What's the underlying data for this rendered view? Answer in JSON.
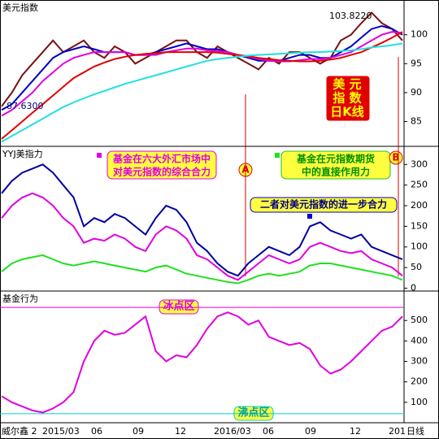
{
  "chart_data": [
    {
      "type": "line",
      "title": "美元指数",
      "ylim": [
        81,
        106
      ],
      "yticks": [
        85,
        90,
        95,
        100
      ],
      "annotations": [
        "103.8220",
        "87.6300",
        "美 元",
        "指 数",
        "日K线"
      ],
      "series": [
        {
          "color": "#7a1010",
          "values": [
            87.63,
            90,
            93,
            95,
            97,
            99,
            97,
            98,
            99,
            97,
            96,
            98,
            97,
            95,
            96,
            97,
            98,
            99,
            99,
            97,
            96,
            98,
            97,
            96,
            95,
            94,
            96,
            95,
            97,
            97,
            96,
            95,
            96,
            99,
            100,
            102,
            103.822,
            102,
            101,
            99
          ]
        },
        {
          "color": "#0000c0",
          "values": [
            87,
            88,
            90,
            92,
            94,
            96,
            97,
            97.5,
            98,
            97.5,
            97,
            97,
            97,
            96.5,
            96.5,
            97,
            97.5,
            98,
            98.5,
            98,
            97.5,
            97.5,
            97,
            96.5,
            96,
            95.5,
            95.5,
            95.5,
            96,
            96.5,
            96.5,
            96,
            96,
            97,
            98,
            99.5,
            101,
            101.5,
            101,
            100
          ]
        },
        {
          "color": "#e000e0",
          "values": [
            86,
            87,
            88.5,
            90,
            92,
            93.5,
            95,
            96,
            96.5,
            97,
            97,
            97,
            97,
            96.5,
            96.5,
            96.5,
            97,
            97.3,
            97.6,
            97.6,
            97.3,
            97.2,
            97,
            96.5,
            96.2,
            95.8,
            95.5,
            95.4,
            95.4,
            95.6,
            95.8,
            95.8,
            96,
            96.5,
            97,
            98,
            99,
            100,
            100.5,
            100.3
          ]
        },
        {
          "color": "#e00000",
          "values": [
            82,
            83.5,
            85,
            86.5,
            88,
            89.5,
            91,
            92.5,
            93.5,
            94.5,
            95.2,
            95.8,
            96.2,
            96.5,
            96.7,
            96.8,
            97,
            97,
            97,
            97,
            97,
            96.9,
            96.7,
            96.5,
            96.3,
            96,
            95.8,
            95.6,
            95.5,
            95.4,
            95.4,
            95.5,
            95.7,
            96,
            96.5,
            97,
            97.8,
            98.6,
            99.5,
            100.5
          ]
        },
        {
          "color": "#20e0e0",
          "values": [
            81.5,
            82.5,
            83.5,
            84.5,
            85.5,
            86.5,
            87.5,
            88.3,
            89,
            89.7,
            90.3,
            90.9,
            91.5,
            92,
            92.5,
            93,
            93.5,
            94,
            94.5,
            95,
            95.5,
            95.8,
            96,
            96.2,
            96.4,
            96.5,
            96.6,
            96.7,
            96.8,
            96.9,
            97,
            97,
            97.1,
            97.2,
            97.3,
            97.5,
            97.8,
            98,
            98.2,
            98.5
          ]
        }
      ]
    },
    {
      "type": "line",
      "title": "YYJ美指力",
      "ylim": [
        -5,
        344
      ],
      "yticks": [
        0,
        50,
        100,
        150,
        200,
        250,
        300
      ],
      "annotations": [
        "基金在六大外汇市场中",
        "对美元指数的综合合力",
        "基金在元指数期货",
        "中的直接作用力",
        "二者对美元指数的进一步合力",
        "A",
        "B"
      ],
      "series": [
        {
          "color": "#0000a0",
          "values": [
            230,
            260,
            280,
            290,
            300,
            280,
            250,
            220,
            150,
            170,
            160,
            180,
            170,
            150,
            130,
            170,
            200,
            190,
            160,
            110,
            90,
            60,
            40,
            30,
            60,
            80,
            100,
            90,
            80,
            100,
            150,
            160,
            140,
            130,
            120,
            130,
            100,
            90,
            80,
            70
          ]
        },
        {
          "color": "#e000e0",
          "values": [
            170,
            200,
            220,
            230,
            220,
            200,
            170,
            150,
            110,
            120,
            115,
            130,
            120,
            100,
            90,
            130,
            150,
            140,
            120,
            80,
            70,
            50,
            30,
            20,
            40,
            60,
            80,
            70,
            60,
            70,
            100,
            110,
            100,
            90,
            85,
            90,
            70,
            60,
            50,
            30
          ]
        },
        {
          "color": "#20e020",
          "values": [
            40,
            60,
            70,
            75,
            80,
            70,
            60,
            55,
            60,
            65,
            60,
            55,
            50,
            45,
            40,
            50,
            55,
            45,
            35,
            30,
            25,
            20,
            15,
            12,
            20,
            30,
            35,
            30,
            35,
            40,
            55,
            60,
            60,
            55,
            50,
            45,
            40,
            35,
            30,
            20
          ]
        }
      ]
    },
    {
      "type": "line",
      "title": "基金行为",
      "ylim": [
        0,
        644
      ],
      "yticks": [
        100,
        200,
        300,
        400,
        500
      ],
      "annotations": [
        "冰点区",
        "沸点区"
      ],
      "hlines": [
        {
          "value": 564,
          "color": "#e000e0"
        },
        {
          "value": 44,
          "color": "#00d0d0"
        }
      ],
      "series": [
        {
          "color": "#e000e0",
          "values": [
            130,
            100,
            80,
            60,
            50,
            70,
            100,
            150,
            300,
            400,
            450,
            430,
            440,
            480,
            520,
            350,
            300,
            330,
            320,
            380,
            460,
            520,
            540,
            520,
            480,
            500,
            420,
            400,
            380,
            390,
            360,
            280,
            240,
            260,
            300,
            350,
            400,
            450,
            470,
            520
          ]
        }
      ]
    }
  ],
  "x_axis": {
    "labels": [
      "威尔鑫 2",
      "2015/03",
      "06",
      "09",
      "12",
      "2016/03",
      "06",
      "09",
      "12",
      "201",
      "日线"
    ]
  }
}
